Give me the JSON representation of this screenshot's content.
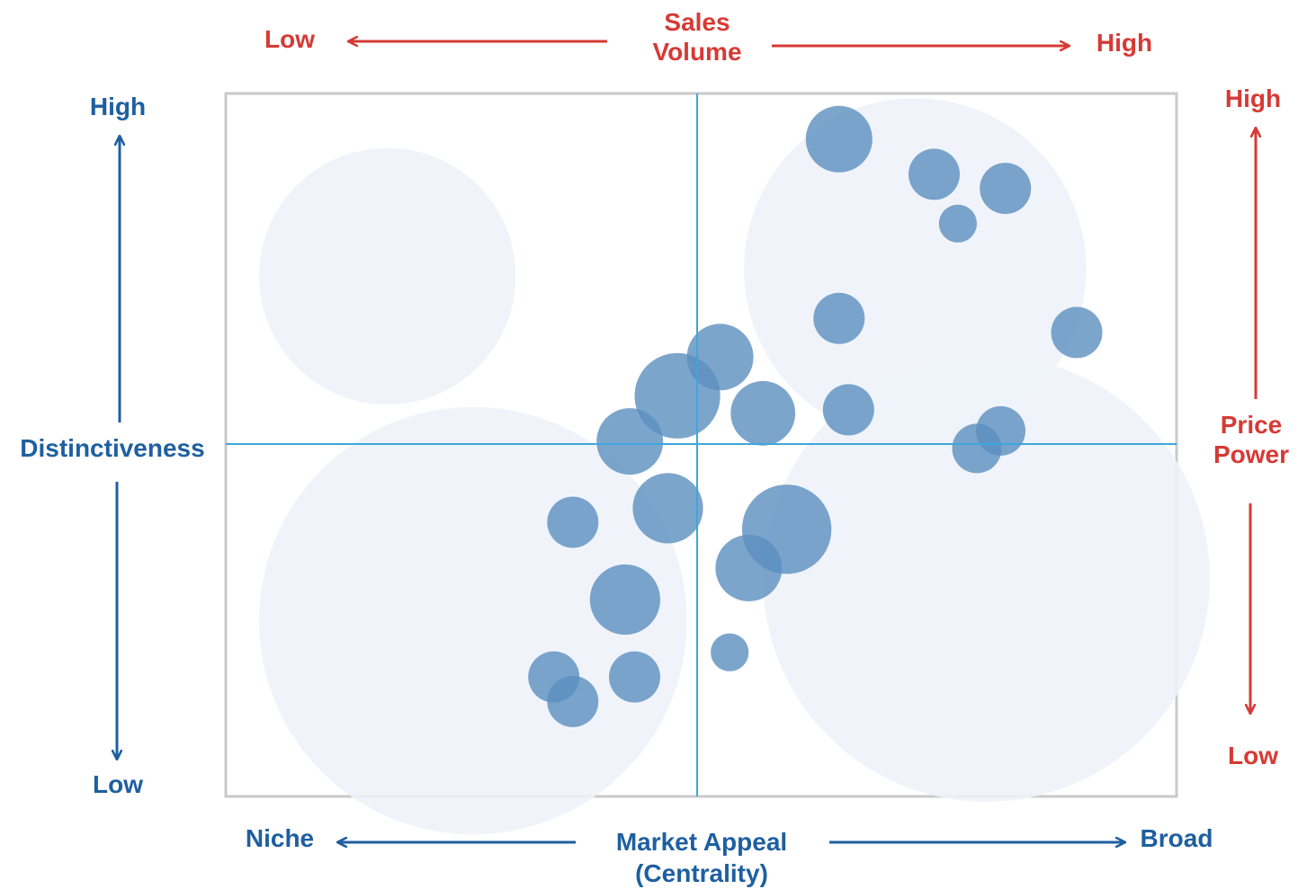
{
  "colors": {
    "blue": "#1e5fa0",
    "red": "#d63a35",
    "quadrant_line": "#3ea6dd",
    "frame": "#c9c9c9",
    "bubble": "#5b8fbf",
    "halo": "#eef3fa"
  },
  "labels": {
    "sales_volume_line1": "Sales",
    "sales_volume_line2": "Volume",
    "sales_low": "Low",
    "sales_high": "High",
    "distinctiveness": "Distinctiveness",
    "dist_high": "High",
    "dist_low": "Low",
    "price_power_line1": "Price",
    "price_power_line2": "Power",
    "price_high": "High",
    "price_low": "Low",
    "market_appeal_line1": "Market Appeal",
    "market_appeal_line2": "(Centrality)",
    "niche": "Niche",
    "broad": "Broad"
  },
  "chart_data": {
    "type": "scatter",
    "title": "",
    "xlabel": "Market Appeal (Centrality)",
    "ylabel": "Distinctiveness",
    "xlim": [
      0,
      100
    ],
    "ylim": [
      0,
      100
    ],
    "grid": false,
    "quadrant_lines": {
      "x": 49.5,
      "y": 50
    },
    "series": [
      {
        "role": "highlight_zones",
        "points": [
          {
            "x": 17,
            "y": 74,
            "r": 13.5
          },
          {
            "x": 72.5,
            "y": 75,
            "r": 18
          },
          {
            "x": 26,
            "y": 25,
            "r": 22.5
          },
          {
            "x": 80,
            "y": 31,
            "r": 23.5
          }
        ]
      },
      {
        "role": "bubbles",
        "points": [
          {
            "x": 64.5,
            "y": 93.5,
            "r": 3.5
          },
          {
            "x": 74.5,
            "y": 88.5,
            "r": 2.7
          },
          {
            "x": 82,
            "y": 86.5,
            "r": 2.7
          },
          {
            "x": 77,
            "y": 81.5,
            "r": 2.0
          },
          {
            "x": 64.5,
            "y": 68,
            "r": 2.7
          },
          {
            "x": 89.5,
            "y": 66,
            "r": 2.7
          },
          {
            "x": 52,
            "y": 62.5,
            "r": 3.5
          },
          {
            "x": 47.5,
            "y": 57,
            "r": 4.5
          },
          {
            "x": 56.5,
            "y": 54.5,
            "r": 3.4
          },
          {
            "x": 65.5,
            "y": 55,
            "r": 2.7
          },
          {
            "x": 81.5,
            "y": 52,
            "r": 2.6
          },
          {
            "x": 79,
            "y": 49.5,
            "r": 2.6
          },
          {
            "x": 42.5,
            "y": 50.5,
            "r": 3.5
          },
          {
            "x": 46.5,
            "y": 41,
            "r": 3.7
          },
          {
            "x": 36.5,
            "y": 39,
            "r": 2.7
          },
          {
            "x": 59,
            "y": 38,
            "r": 4.7
          },
          {
            "x": 55,
            "y": 32.5,
            "r": 3.5
          },
          {
            "x": 42,
            "y": 28,
            "r": 3.7
          },
          {
            "x": 53,
            "y": 20.5,
            "r": 2.0
          },
          {
            "x": 34.5,
            "y": 17,
            "r": 2.7
          },
          {
            "x": 43,
            "y": 17,
            "r": 2.7
          },
          {
            "x": 36.5,
            "y": 13.5,
            "r": 2.7
          }
        ]
      }
    ]
  }
}
